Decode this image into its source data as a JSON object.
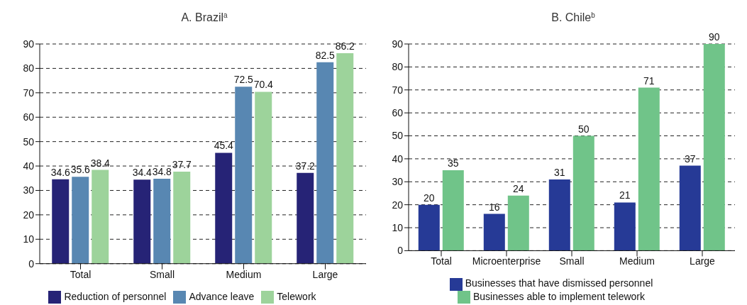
{
  "chart_data": [
    {
      "type": "bar",
      "title": "A. Brazil$^{a}$",
      "categories": [
        "Total",
        "Small",
        "Medium",
        "Large"
      ],
      "series": [
        {
          "name": "Reduction of personnel",
          "color": "#262376",
          "values": [
            34.6,
            34.4,
            45.4,
            37.2
          ]
        },
        {
          "name": "Advance leave",
          "color": "#5887b2",
          "values": [
            35.6,
            34.8,
            72.5,
            82.5
          ]
        },
        {
          "name": "Telework",
          "color": "#9dd39b",
          "values": [
            38.4,
            37.7,
            70.4,
            86.2
          ]
        }
      ],
      "ylim": [
        0,
        90
      ],
      "yticks": [
        0,
        10,
        20,
        30,
        40,
        50,
        60,
        70,
        80,
        90
      ],
      "grid": "y",
      "legend": "bottom",
      "data_labels": true
    },
    {
      "type": "bar",
      "title": "B. Chile$^{b}$",
      "categories": [
        "Total",
        "Microenterprise",
        "Small",
        "Medium",
        "Large"
      ],
      "series": [
        {
          "name": "Businesses that have dismissed personnel",
          "color": "#263a96",
          "values": [
            20,
            16,
            31,
            21,
            37
          ]
        },
        {
          "name": "Businesses able to implement telework",
          "color": "#70c489",
          "values": [
            35,
            24,
            50,
            71,
            90
          ]
        }
      ],
      "ylim": [
        0,
        90
      ],
      "yticks": [
        0,
        10,
        20,
        30,
        40,
        50,
        60,
        70,
        80,
        90
      ],
      "grid": "y",
      "legend": "bottom",
      "data_labels": true
    }
  ]
}
